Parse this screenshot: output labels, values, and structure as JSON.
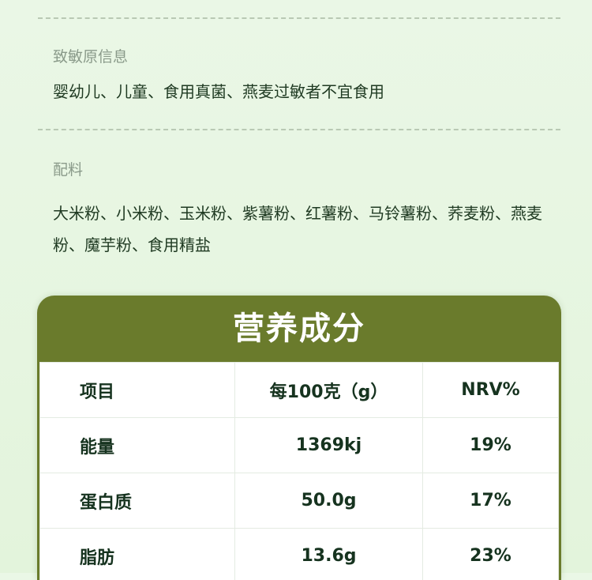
{
  "allergen": {
    "label": "致敏原信息",
    "text": "婴幼儿、儿童、食用真菌、燕麦过敏者不宜食用"
  },
  "ingredients": {
    "label": "配料",
    "text": "大米粉、小米粉、玉米粉、紫薯粉、红薯粉、马铃薯粉、荞麦粉、燕麦粉、魔芋粉、食用精盐"
  },
  "nutrition": {
    "title": "营养成分",
    "header": [
      "项目",
      "每100克（g）",
      "NRV%"
    ],
    "rows": [
      [
        "能量",
        "1369kj",
        "19%"
      ],
      [
        "蛋白质",
        "50.0g",
        "17%"
      ],
      [
        "脂肪",
        "13.6g",
        "23%"
      ]
    ]
  },
  "colors": {
    "header_green": "#6a7b2c",
    "text": "#1f3a22",
    "background": "#e6f5e0"
  }
}
